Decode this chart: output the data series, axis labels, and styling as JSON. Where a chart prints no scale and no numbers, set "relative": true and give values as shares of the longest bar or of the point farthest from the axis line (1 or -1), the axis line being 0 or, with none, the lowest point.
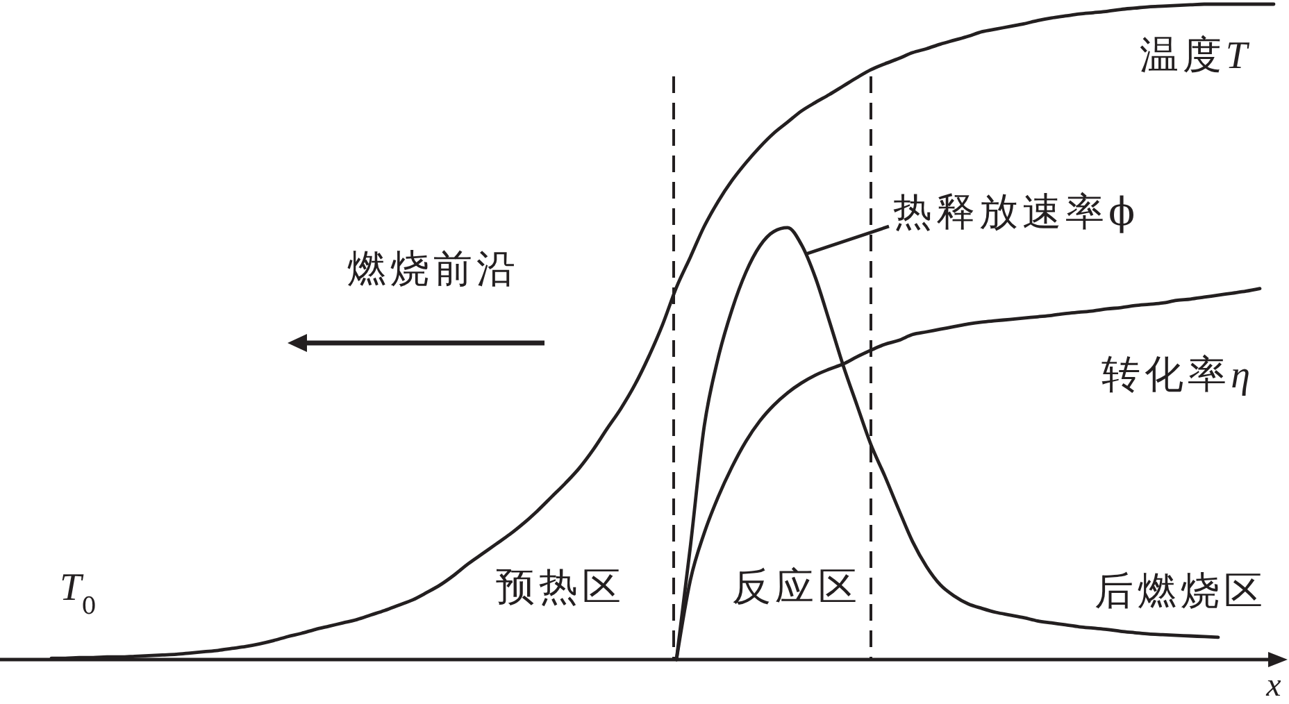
{
  "chart_data": {
    "type": "line",
    "relative": true,
    "xlabel": "x",
    "categories": [
      null,
      null,
      null,
      null,
      null,
      null,
      null,
      null,
      null,
      null,
      null,
      null,
      null,
      null,
      null,
      null,
      null,
      null,
      null,
      null,
      null,
      null,
      null,
      null,
      null,
      null,
      null,
      null,
      null,
      null,
      null,
      null,
      null,
      null,
      null,
      null,
      null,
      null,
      null,
      null,
      null,
      null,
      null,
      null,
      null,
      null,
      null,
      null,
      null,
      null,
      null,
      null,
      null,
      null,
      null,
      null,
      null,
      null,
      null,
      null,
      null,
      null,
      null,
      null,
      null,
      null,
      null,
      null,
      null,
      null,
      null,
      null,
      null,
      null,
      null,
      null,
      null,
      null,
      null,
      null,
      null,
      null,
      null,
      null,
      null,
      null,
      null,
      null,
      null
    ],
    "series": [
      {
        "name": "温度T",
        "color": "#231f20",
        "values": [
          0.002,
          0.002,
          0.003,
          0.003,
          0.004,
          0.004,
          0.005,
          0.006,
          0.007,
          0.008,
          0.01,
          0.012,
          0.014,
          0.017,
          0.02,
          0.024,
          0.029,
          0.035,
          0.04,
          0.046,
          0.051,
          0.056,
          0.061,
          0.068,
          0.075,
          0.083,
          0.091,
          0.102,
          0.114,
          0.129,
          0.146,
          0.161,
          0.176,
          0.191,
          0.208,
          0.227,
          0.248,
          0.269,
          0.292,
          0.32,
          0.352,
          0.383,
          0.419,
          0.462,
          0.511,
          0.568,
          0.614,
          0.661,
          0.699,
          0.731,
          0.758,
          0.782,
          0.803,
          0.82,
          0.837,
          0.85,
          0.862,
          0.875,
          0.888,
          0.9,
          0.909,
          0.917,
          0.926,
          0.932,
          0.939,
          0.945,
          0.951,
          0.958,
          0.962,
          0.966,
          0.97,
          0.975,
          0.979,
          0.982,
          0.985,
          0.987,
          0.989,
          0.992,
          0.994,
          0.996,
          0.997,
          0.998,
          0.999,
          1,
          1,
          1,
          1,
          1,
          1
        ]
      },
      {
        "name": "热释放速率ϕ",
        "color": "#231f20",
        "values": [
          null,
          null,
          null,
          null,
          null,
          null,
          null,
          null,
          null,
          null,
          null,
          null,
          null,
          null,
          null,
          null,
          null,
          null,
          null,
          null,
          null,
          null,
          null,
          null,
          null,
          null,
          null,
          null,
          null,
          null,
          null,
          null,
          null,
          null,
          null,
          null,
          null,
          null,
          null,
          null,
          null,
          null,
          null,
          null,
          null,
          0,
          0.172,
          0.356,
          0.46,
          0.534,
          0.591,
          0.631,
          0.653,
          0.659,
          0.633,
          0.583,
          0.517,
          0.449,
          0.388,
          0.328,
          0.28,
          0.229,
          0.18,
          0.142,
          0.114,
          0.097,
          0.085,
          0.078,
          0.072,
          0.068,
          0.064,
          0.059,
          0.056,
          0.053,
          0.05,
          0.048,
          0.046,
          0.043,
          0.041,
          0.039,
          0.038,
          0.037,
          0.036,
          0.035,
          0.034,
          null,
          null,
          null,
          null
        ]
      },
      {
        "name": "转化率η",
        "color": "#231f20",
        "values": [
          null,
          null,
          null,
          null,
          null,
          null,
          null,
          null,
          null,
          null,
          null,
          null,
          null,
          null,
          null,
          null,
          null,
          null,
          null,
          null,
          null,
          null,
          null,
          null,
          null,
          null,
          null,
          null,
          null,
          null,
          null,
          null,
          null,
          null,
          null,
          null,
          null,
          null,
          null,
          null,
          null,
          null,
          null,
          null,
          null,
          0,
          0.121,
          0.193,
          0.248,
          0.294,
          0.333,
          0.364,
          0.388,
          0.407,
          0.422,
          0.434,
          0.443,
          0.451,
          0.462,
          0.472,
          0.481,
          0.487,
          0.496,
          0.5,
          0.504,
          0.508,
          0.512,
          0.515,
          0.517,
          0.519,
          0.521,
          0.523,
          0.525,
          0.528,
          0.53,
          0.532,
          0.535,
          0.537,
          0.54,
          0.542,
          0.544,
          0.548,
          0.55,
          0.553,
          0.556,
          0.559,
          0.562,
          0.566,
          null
        ]
      }
    ],
    "annotations": [
      "燃烧前沿",
      "T$_{0}$",
      "预热区",
      "反应区",
      "后燃烧区"
    ]
  }
}
